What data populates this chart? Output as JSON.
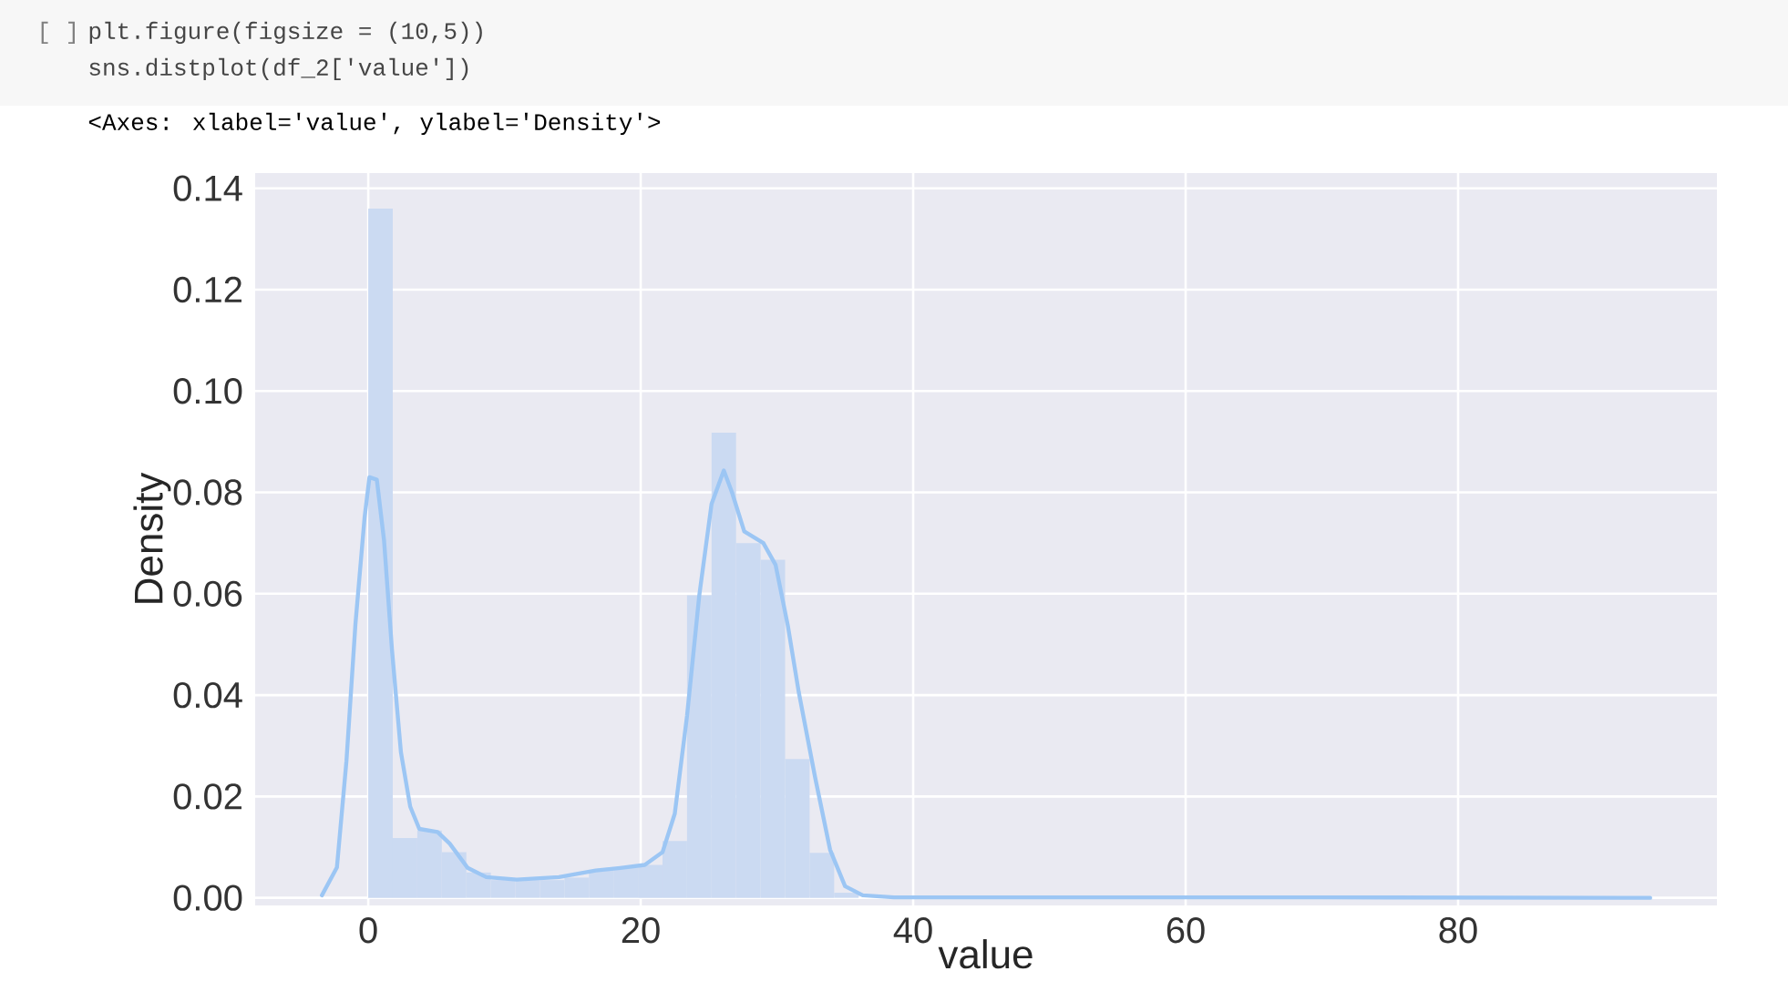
{
  "chart_data": {
    "type": "histogram",
    "xlabel": "value",
    "ylabel": "Density",
    "annotations": [
      "[ ]",
      "plt.figure(figsize = (10,5))",
      "sns.distplot(df_2['value'])",
      "<Axes: xlabel='value', ylabel='Density'>"
    ],
    "xlim": [
      -8.3,
      99
    ],
    "ylim": [
      -0.0015,
      0.143
    ],
    "xticks": [
      0,
      20,
      40,
      60,
      80
    ],
    "yticks": [
      {
        "value": 0,
        "label": "0.00"
      },
      {
        "value": 0.02,
        "label": "0.02"
      },
      {
        "value": 0.04,
        "label": "0.04"
      },
      {
        "value": 0.06,
        "label": "0.06"
      },
      {
        "value": 0.08,
        "label": "0.08"
      },
      {
        "value": 0.1,
        "label": "0.10"
      },
      {
        "value": 0.12,
        "label": "0.12"
      },
      {
        "value": 0.14,
        "label": "0.14"
      }
    ],
    "grid": true,
    "series": [
      {
        "color": "#cbdaf2",
        "bins": [
          0,
          1.8,
          3.6,
          5.4,
          7.2,
          9,
          10.8,
          12.6,
          14.4,
          16.2,
          18,
          19.8,
          21.6,
          23.4,
          25.2,
          27,
          28.8,
          30.6,
          32.4,
          34.2,
          36,
          37.8,
          39.6,
          41.4,
          43.2,
          45,
          46.8,
          48.6,
          50.4,
          52.2,
          54,
          55.8,
          57.6,
          59.4,
          61.2,
          63,
          64.8,
          66.6,
          68.4,
          70.2,
          72,
          73.8,
          75.6,
          77.4,
          79.2,
          81,
          82.8,
          84.6,
          86.4,
          88.2,
          90
        ],
        "values": [
          0.136,
          0.0118,
          0.0133,
          0.009,
          0.005,
          0.0035,
          0.0035,
          0.0035,
          0.004,
          0.0055,
          0.006,
          0.0065,
          0.0112,
          0.0597,
          0.0918,
          0.07,
          0.0667,
          0.0274,
          0.0089,
          0.001,
          0,
          0,
          0,
          0,
          0,
          0,
          0,
          0,
          0,
          0,
          0,
          0,
          0,
          0,
          0,
          0,
          0,
          0,
          0,
          0,
          0,
          0,
          0,
          0,
          0,
          0,
          0,
          0,
          0,
          0
        ]
      },
      {
        "type": "line",
        "color": "#9cc6f4",
        "x": [
          -3.4,
          -2.3,
          -1.6,
          -0.94,
          -0.27,
          0.09,
          0.63,
          1.16,
          1.74,
          2.4,
          3.08,
          3.75,
          5.09,
          5.98,
          7.3,
          8.66,
          10.9,
          14,
          16.7,
          18.5,
          20.3,
          21.6,
          22.5,
          23.4,
          24.3,
          25.2,
          26.1,
          26.7,
          27.6,
          29,
          29.9,
          30.8,
          31.6,
          32.8,
          33.9,
          35,
          36.3,
          38.6,
          50,
          70,
          94.1
        ],
        "values": [
          0.0005,
          0.006,
          0.027,
          0.054,
          0.075,
          0.083,
          0.0825,
          0.0705,
          0.049,
          0.0287,
          0.018,
          0.0136,
          0.013,
          0.0107,
          0.0059,
          0.0041,
          0.0036,
          0.0041,
          0.0054,
          0.0059,
          0.0065,
          0.009,
          0.0166,
          0.0359,
          0.0597,
          0.0777,
          0.0843,
          0.08,
          0.0723,
          0.07,
          0.0657,
          0.0537,
          0.0406,
          0.0238,
          0.0095,
          0.0023,
          0.0005,
          0.0001,
          0.0001,
          0.0001,
          0
        ]
      }
    ]
  }
}
